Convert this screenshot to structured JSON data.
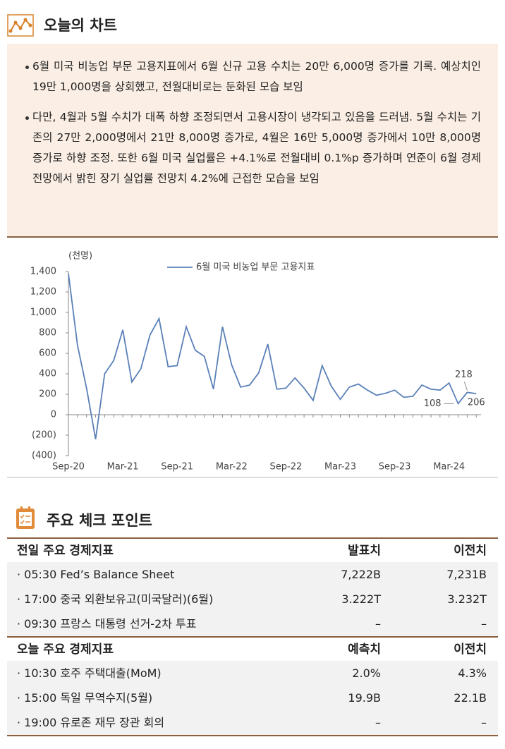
{
  "header": {
    "title": "오늘의 차트"
  },
  "summary": {
    "bullets": [
      "6월 미국 비농업 부문 고용지표에서 6월 신규 고용 수치는 20만 6,000명 증가를 기록. 예상치인 19만 1,000명을 상회했고, 전월대비로는 둔화된 모습 보임",
      "다만, 4월과 5월 수치가 대폭 하향 조정되면서 고용시장이 냉각되고 있음을 드러냄. 5월 수치는 기존의 27만 2,000명에서 21만 8,000명 증가로, 4월은 16만 5,000명 증가에서 10만 8,000명 증가로 하향 조정. 또한 6월 미국 실업률은 +4.1%로 전월대비 0.1%p 증가하며 연준이 6월 경제전망에서 밝힌 장기 실업률 전망치 4.2%에 근접한 모습을 보임"
    ]
  },
  "chart_data": {
    "type": "line",
    "y_unit": "(천명)",
    "categories": [
      "Sep-20",
      null,
      null,
      null,
      null,
      null,
      "Mar-21",
      null,
      null,
      null,
      null,
      null,
      "Sep-21",
      null,
      null,
      null,
      null,
      null,
      "Mar-22",
      null,
      null,
      null,
      null,
      null,
      "Sep-22",
      null,
      null,
      null,
      null,
      null,
      "Mar-23",
      null,
      null,
      null,
      null,
      null,
      "Sep-23",
      null,
      null,
      null,
      null,
      null,
      "Mar-24",
      null,
      null,
      null
    ],
    "series": [
      {
        "name": "6월 미국 비농업 부문 고용지표",
        "color": "#5a80b8",
        "values": [
          1380,
          680,
          260,
          -240,
          400,
          530,
          830,
          320,
          450,
          780,
          940,
          470,
          480,
          860,
          630,
          570,
          250,
          860,
          490,
          270,
          290,
          410,
          690,
          250,
          260,
          360,
          260,
          140,
          480,
          280,
          150,
          270,
          300,
          240,
          190,
          210,
          240,
          170,
          180,
          290,
          250,
          240,
          310,
          108,
          218,
          206
        ]
      }
    ],
    "ylim": [
      -400,
      1400
    ],
    "yticks": [
      {
        "value": 1400,
        "label": "1,400"
      },
      {
        "value": 1200,
        "label": "1,200"
      },
      {
        "value": 1000,
        "label": "1,000"
      },
      800,
      600,
      400,
      200,
      0,
      {
        "value": -200,
        "label": "(200)"
      },
      {
        "value": -400,
        "label": "(400)"
      }
    ],
    "legend": "top"
  },
  "checkpoints": {
    "title": "주요 체크 포인트",
    "tables": [
      {
        "header": [
          "전일 주요 경제지표",
          "발표치",
          "이전치"
        ],
        "rows": [
          [
            "· 05:30 Fed’s Balance Sheet",
            "7,222B",
            "7,231B"
          ],
          [
            "· 17:00 중국 외환보유고(미국달러)(6월)",
            "3.222T",
            "3.232T"
          ],
          [
            "· 09:30 프랑스 대통령 선거-2차 투표",
            "–",
            "–"
          ]
        ]
      },
      {
        "header": [
          "오늘 주요 경제지표",
          "예측치",
          "이전치"
        ],
        "rows": [
          [
            "· 10:30 호주 주택대출(MoM)",
            "2.0%",
            "4.3%"
          ],
          [
            "· 15:00 독일 무역수지(5월)",
            "19.9B",
            "22.1B"
          ],
          [
            "· 19:00 유로존 재무 장관 회의",
            "–",
            "–"
          ]
        ]
      }
    ]
  }
}
